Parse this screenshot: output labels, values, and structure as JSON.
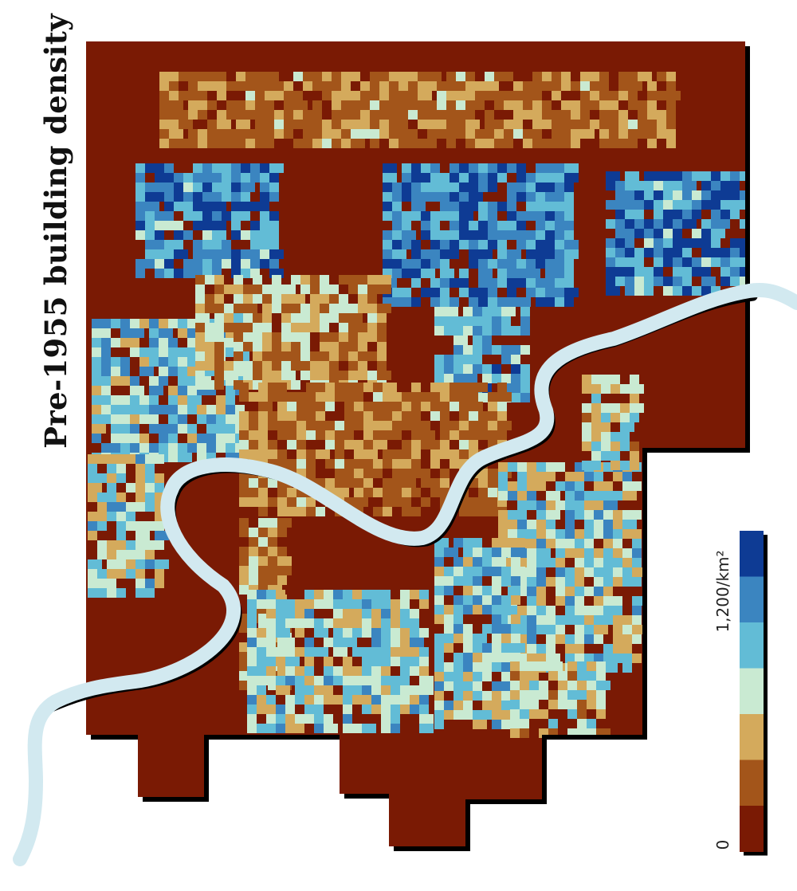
{
  "title": "Pre-1955 building density",
  "legend": {
    "max_label": "1,200/km²",
    "min_label": "0",
    "min_value": 0,
    "max_value": 1200,
    "classes": [
      "#7a1a04",
      "#a3551a",
      "#d4aa5c",
      "#c9ead2",
      "#62bcd6",
      "#3b85c0",
      "#0e3b94"
    ]
  },
  "colors": {
    "base": "#7a1a04",
    "river": "#d2e9f0",
    "shadow": "#000000"
  }
}
